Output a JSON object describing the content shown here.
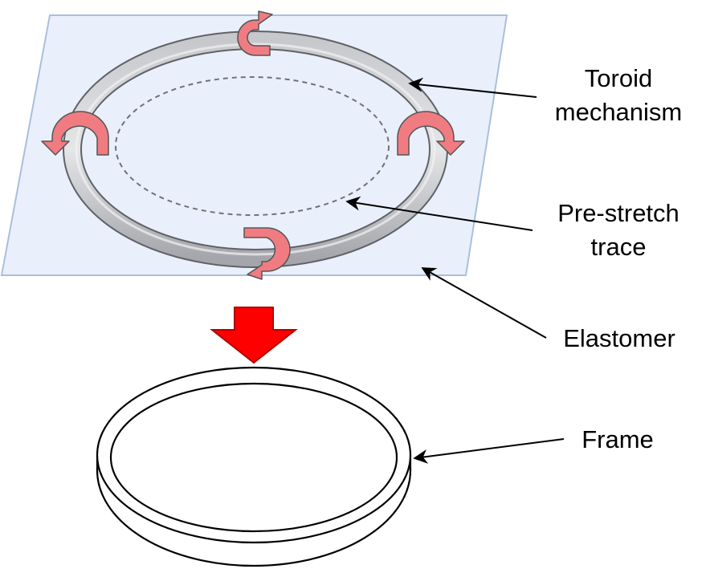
{
  "labels": {
    "toroid_line1": "Toroid",
    "toroid_line2": "mechanism",
    "prestretch_line1": "Pre-stretch",
    "prestretch_line2": "trace",
    "elastomer": "Elastomer",
    "frame": "Frame"
  },
  "colors": {
    "elastomer_fill": "#e9f0fb",
    "elastomer_stroke": "#a9bfdc",
    "toroid_outline": "#5f6266",
    "toroid_light": "#e3e4e7",
    "toroid_dark": "#9c9ea3",
    "rotation_arrow": "#f07c82",
    "rotation_arrow_stroke": "#555555",
    "down_arrow": "#ff0000",
    "down_arrow_stroke": "#b40000",
    "leader_line": "#000000",
    "dashed_trace": "#6f7276"
  },
  "icons": {
    "rotation_arrows": [
      "curved-arrow-top",
      "curved-arrow-left",
      "curved-arrow-right",
      "curved-arrow-bottom"
    ],
    "transition_arrow": "down-arrow"
  }
}
